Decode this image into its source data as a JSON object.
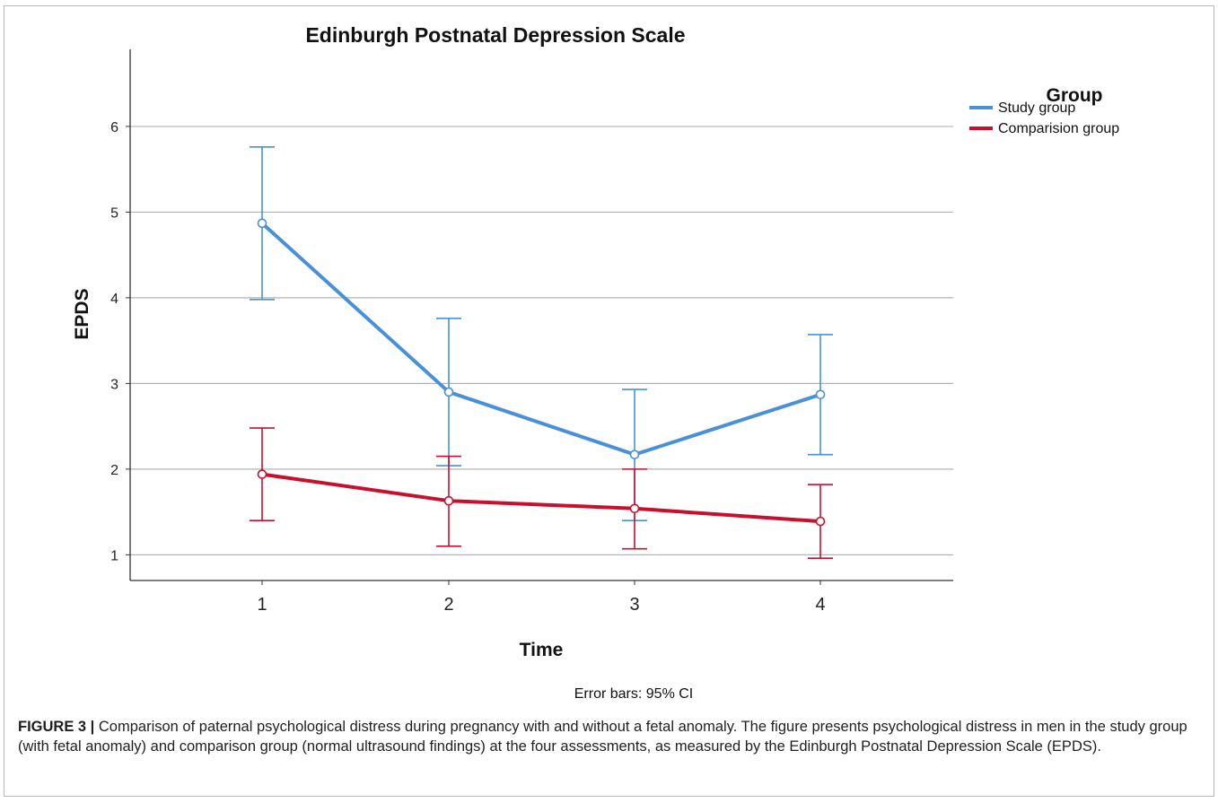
{
  "figure": {
    "caption_label": "FIGURE 3 |",
    "caption_text": " Comparison of paternal psychological distress during pregnancy with and without a fetal anomaly. The figure presents psychological distress in men in the study group (with fetal anomaly) and comparison group (normal ultrasound findings) at the four assessments, as measured by the Edinburgh Postnatal Depression Scale (EPDS)."
  },
  "chart_data": {
    "type": "line",
    "title": "Edinburgh Postnatal Depression Scale",
    "xlabel": "Time",
    "ylabel": "EPDS",
    "note": "Error bars: 95% CI",
    "legend_title": "Group",
    "legend_position": "right",
    "grid": true,
    "ylim": [
      0.7,
      6.9
    ],
    "yticks": [
      1,
      2,
      3,
      4,
      5,
      6
    ],
    "categories": [
      "1",
      "2",
      "3",
      "4"
    ],
    "series": [
      {
        "name": "Study group",
        "color": "#4a90d9",
        "values": [
          4.87,
          2.9,
          2.17,
          2.87
        ],
        "ci_low": [
          3.98,
          2.04,
          1.4,
          2.17
        ],
        "ci_high": [
          5.76,
          3.76,
          2.93,
          3.57
        ]
      },
      {
        "name": "Comparision group",
        "color": "#c8102e",
        "values": [
          1.94,
          1.63,
          1.54,
          1.39
        ],
        "ci_low": [
          1.4,
          1.1,
          1.07,
          0.96
        ],
        "ci_high": [
          2.48,
          2.15,
          2.0,
          1.82
        ]
      }
    ]
  }
}
